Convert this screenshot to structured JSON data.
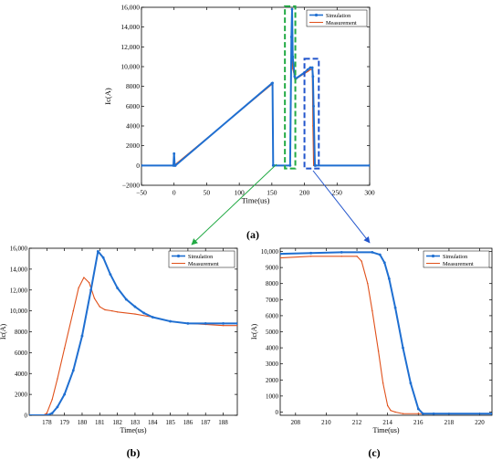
{
  "figure": {
    "panel_labels": [
      "(a)",
      "(b)",
      "(c)"
    ],
    "colors": {
      "simulation": "#1f6fd1",
      "measurement": "#e0501a",
      "highlight_green": "#22aa44",
      "highlight_blue": "#2255cc",
      "axes": "#000000"
    }
  },
  "chart_data": [
    {
      "id": "a",
      "type": "line",
      "title": "",
      "xlabel": "Time(us)",
      "ylabel": "Ic(A)",
      "xlim": [
        -50,
        300
      ],
      "ylim": [
        -2000,
        16000
      ],
      "xticks": [
        -50,
        0,
        50,
        100,
        150,
        200,
        250,
        300
      ],
      "xtick_labels": [
        "−50",
        "0",
        "50",
        "100",
        "150",
        "200",
        "250",
        "300"
      ],
      "yticks": [
        -2000,
        0,
        2000,
        4000,
        6000,
        8000,
        10000,
        12000,
        14000,
        16000
      ],
      "ytick_labels": [
        "−2000",
        "0",
        "2000",
        "4000",
        "6000",
        "8000",
        "10,000",
        "12,000",
        "14,000",
        "16,000"
      ],
      "legend": {
        "position": "top-right",
        "entries": [
          "Simulation",
          "Measurement"
        ]
      },
      "series": [
        {
          "name": "Simulation",
          "x": [
            -50,
            -1,
            0,
            1,
            2,
            150,
            151,
            152,
            153,
            178,
            180,
            181,
            182,
            185,
            186,
            187,
            200,
            205,
            209,
            212,
            213,
            214,
            216,
            217,
            300
          ],
          "y": [
            0,
            0,
            1200,
            0,
            0,
            8300,
            8350,
            0,
            0,
            0,
            13000,
            15800,
            11000,
            9000,
            8800,
            8800,
            9400,
            9700,
            9900,
            9900,
            9000,
            6000,
            0,
            0,
            0
          ]
        },
        {
          "name": "Measurement",
          "x": [
            -50,
            0,
            150,
            151,
            152,
            153,
            178,
            180,
            181,
            182,
            186,
            200,
            205,
            209,
            212,
            213,
            214,
            216,
            300
          ],
          "y": [
            0,
            0,
            8200,
            8300,
            0,
            0,
            0,
            13200,
            11000,
            9800,
            8700,
            9300,
            9500,
            9700,
            9700,
            4000,
            0,
            0,
            0
          ]
        }
      ],
      "annotations": [
        {
          "kind": "box",
          "color": "green",
          "x_range": [
            170,
            186
          ],
          "y_range": [
            -300,
            16100
          ]
        },
        {
          "kind": "box",
          "color": "blue",
          "x_range": [
            200,
            222
          ],
          "y_range": [
            -300,
            10800
          ]
        }
      ]
    },
    {
      "id": "b",
      "type": "line",
      "title": "",
      "xlabel": "Time(us)",
      "ylabel": "Ic(A)",
      "xlim": [
        177,
        188.8
      ],
      "ylim": [
        0,
        16000
      ],
      "xticks": [
        178,
        179,
        180,
        181,
        182,
        183,
        184,
        185,
        186,
        187,
        188
      ],
      "yticks": [
        0,
        2000,
        4000,
        6000,
        8000,
        10000,
        12000,
        14000,
        16000
      ],
      "ytick_labels": [
        "0",
        "2000",
        "4000",
        "6000",
        "8000",
        "10,000",
        "12,000",
        "14,000",
        "16,000"
      ],
      "legend": {
        "position": "top-right",
        "entries": [
          "Simulation",
          "Measurement"
        ]
      },
      "series": [
        {
          "name": "Simulation",
          "x": [
            177,
            178,
            178.3,
            178.6,
            179,
            179.5,
            180,
            180.5,
            180.9,
            181.2,
            181.6,
            182,
            182.5,
            183,
            183.5,
            184,
            185,
            186,
            187,
            188,
            188.8
          ],
          "y": [
            0,
            0,
            200,
            800,
            2000,
            4300,
            7600,
            12000,
            15700,
            15100,
            13500,
            12200,
            11100,
            10400,
            9800,
            9400,
            9000,
            8800,
            8800,
            8800,
            8800
          ]
        },
        {
          "name": "Measurement",
          "x": [
            177,
            177.8,
            178,
            178.3,
            178.6,
            179,
            179.5,
            179.8,
            180.1,
            180.4,
            180.7,
            181,
            181.3,
            181.7,
            182,
            183,
            184,
            185,
            186,
            187,
            188,
            188.8
          ],
          "y": [
            0,
            0,
            200,
            1500,
            3500,
            6400,
            10000,
            12200,
            13200,
            12700,
            11200,
            10400,
            10100,
            10000,
            9900,
            9700,
            9400,
            9000,
            8800,
            8700,
            8600,
            8600
          ]
        }
      ]
    },
    {
      "id": "c",
      "type": "line",
      "title": "",
      "xlabel": "Time(us)",
      "ylabel": "Ic(A)",
      "xlim": [
        207,
        220.8
      ],
      "ylim": [
        -200,
        10200
      ],
      "xticks": [
        208,
        210,
        212,
        214,
        216,
        218,
        220
      ],
      "yticks": [
        0,
        1000,
        2000,
        3000,
        4000,
        5000,
        6000,
        7000,
        8000,
        9000,
        10000
      ],
      "ytick_labels": [
        "0",
        "1000",
        "2000",
        "3000",
        "4000",
        "5000",
        "6000",
        "7000",
        "8000",
        "9000",
        "10,000"
      ],
      "legend": {
        "position": "top-right",
        "entries": [
          "Simulation",
          "Measurement"
        ]
      },
      "series": [
        {
          "name": "Simulation",
          "x": [
            207,
            209,
            211,
            213,
            213.5,
            213.8,
            214.1,
            214.5,
            215,
            215.5,
            216,
            216.3,
            217,
            220.8
          ],
          "y": [
            9850,
            9900,
            9950,
            9950,
            9800,
            9300,
            8300,
            6500,
            4000,
            1800,
            200,
            -100,
            -100,
            -100
          ]
        },
        {
          "name": "Measurement",
          "x": [
            207,
            209,
            211,
            212,
            212.3,
            212.7,
            213,
            213.4,
            213.7,
            214,
            214.2,
            214.5,
            215,
            216,
            220.8
          ],
          "y": [
            9600,
            9700,
            9700,
            9700,
            9400,
            8000,
            6300,
            3800,
            1800,
            400,
            100,
            0,
            -100,
            -100,
            -100
          ]
        }
      ]
    }
  ]
}
